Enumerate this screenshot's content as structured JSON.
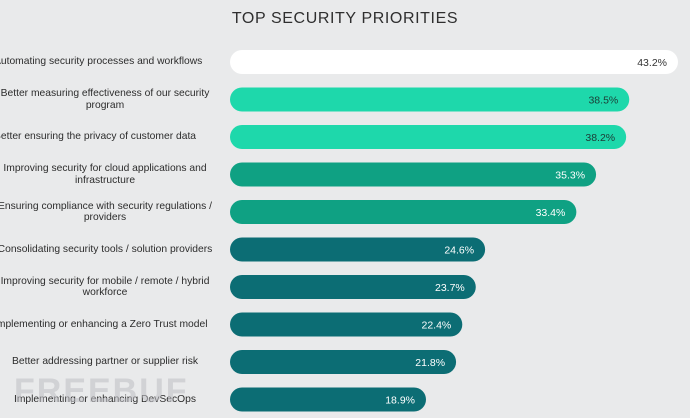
{
  "chart_data": {
    "type": "bar",
    "orientation": "horizontal",
    "title": "TOP SECURITY PRIORITIES",
    "categories": [
      "Automating security processes and workflows",
      "Better measuring effectiveness of our security program",
      "Better ensuring the privacy of customer data",
      "Improving security for cloud applications and infrastructure",
      "Ensuring compliance with security regulations / providers",
      "Consolidating security tools / solution providers",
      "Improving security for mobile / remote / hybrid workforce",
      "Implementing or enhancing a Zero Trust model",
      "Better addressing partner or supplier risk",
      "Implementing or enhancing DevSecOps"
    ],
    "values": [
      43.2,
      38.5,
      38.2,
      35.3,
      33.4,
      24.6,
      23.7,
      22.4,
      21.8,
      18.9
    ],
    "value_labels": [
      "43.2%",
      "38.5%",
      "38.2%",
      "35.3%",
      "33.4%",
      "24.6%",
      "23.7%",
      "22.4%",
      "21.8%",
      "18.9%"
    ],
    "bar_colors": [
      "#ffffff",
      "#1ed8ab",
      "#1ed8ab",
      "#0fa183",
      "#0fa183",
      "#0c6d74",
      "#0c6d74",
      "#0c6d74",
      "#0c6d74",
      "#0c6d74"
    ],
    "value_label_colors": [
      "#333333",
      "#1c3b35",
      "#1c3b35",
      "#ffffff",
      "#ffffff",
      "#ffffff",
      "#ffffff",
      "#ffffff",
      "#ffffff",
      "#ffffff"
    ],
    "xlim": [
      0,
      43.2
    ],
    "xlabel": "",
    "ylabel": ""
  },
  "watermark": "FREEBUF"
}
